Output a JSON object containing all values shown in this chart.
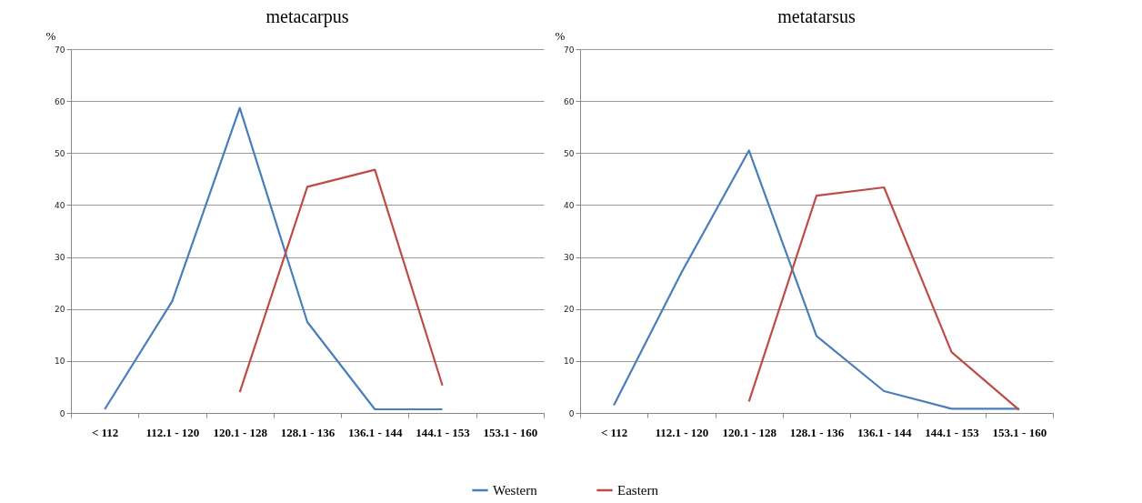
{
  "chart_data": [
    {
      "type": "line",
      "title": "metacarpus",
      "ylabel": "%",
      "categories": [
        "< 112",
        "112.1 - 120",
        "120.1 - 128",
        "128.1 - 136",
        "136.1 - 144",
        "144.1 - 153",
        "153.1 - 160"
      ],
      "series": [
        {
          "name": "Western",
          "color": "#4a7ebb",
          "values": [
            0.7,
            21.5,
            58.7,
            17.5,
            0.7,
            0.7,
            null
          ]
        },
        {
          "name": "Eastern",
          "color": "#be4b48",
          "values": [
            null,
            null,
            4,
            43.5,
            46.8,
            5.3,
            null
          ]
        }
      ],
      "ylim": [
        0,
        70
      ],
      "yticks": [
        0,
        10,
        20,
        30,
        40,
        50,
        60,
        70
      ],
      "grid": "y",
      "legend": "bottom"
    },
    {
      "type": "line",
      "title": "metatarsus",
      "ylabel": "%",
      "categories": [
        "< 112",
        "112.1 - 120",
        "120.1 - 128",
        "128.1 - 136",
        "136.1 - 144",
        "144.1 - 153",
        "153.1 - 160"
      ],
      "series": [
        {
          "name": "Western",
          "color": "#4a7ebb",
          "values": [
            1.5,
            27,
            50.5,
            14.8,
            4.2,
            0.8,
            0.8
          ]
        },
        {
          "name": "Eastern",
          "color": "#be4b48",
          "values": [
            null,
            null,
            2.2,
            41.8,
            43.4,
            11.7,
            0.6
          ]
        }
      ],
      "ylim": [
        0,
        70
      ],
      "yticks": [
        0,
        10,
        20,
        30,
        40,
        50,
        60,
        70
      ],
      "grid": "y",
      "legend": "bottom"
    }
  ]
}
